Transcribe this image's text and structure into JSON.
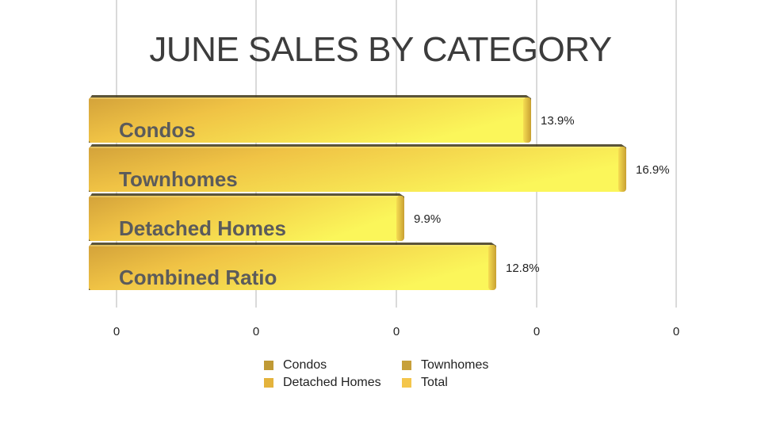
{
  "chart_data": {
    "type": "bar",
    "orientation": "horizontal",
    "title": "JUNE SALES BY CATEGORY",
    "categories": [
      "Condos",
      "Townhomes",
      "Detached Homes",
      "Combined Ratio"
    ],
    "values": [
      13.9,
      16.9,
      9.9,
      12.8
    ],
    "value_labels": [
      "13.9%",
      "16.9%",
      "9.9%",
      "12.8%"
    ],
    "xlim": [
      0,
      20
    ],
    "x_tick_labels": [
      "0",
      "0",
      "0",
      "0",
      "0"
    ],
    "grid": true,
    "legend_position": "bottom",
    "legend": [
      {
        "label": "Condos",
        "color": "#c09a35"
      },
      {
        "label": "Townhomes",
        "color": "#c7a03a"
      },
      {
        "label": "Detached Homes",
        "color": "#e4b33c"
      },
      {
        "label": "Total",
        "color": "#f4c64c"
      }
    ],
    "colors": {
      "bar_light": "#fbf65a",
      "bar_dark": "#d6a43a",
      "category_text": "#5b5b5b",
      "grid": "#b5b5b5"
    }
  }
}
